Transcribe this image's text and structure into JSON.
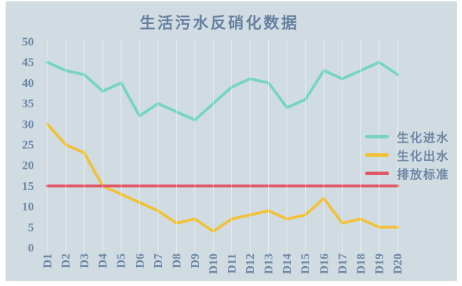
{
  "window": {
    "page_background": "#ffffff",
    "panel_background": "#d0dce2"
  },
  "chart_data": {
    "type": "line",
    "title": "生活污水反硝化数据",
    "categories": [
      "D1",
      "D2",
      "D3",
      "D4",
      "D5",
      "D6",
      "D7",
      "D8",
      "D9",
      "D10",
      "D11",
      "D12",
      "D13",
      "D14",
      "D15",
      "D16",
      "D17",
      "D18",
      "D19",
      "D20"
    ],
    "series": [
      {
        "name": "生化进水",
        "color": "#76d5c1",
        "values": [
          45,
          43,
          42,
          38,
          40,
          32,
          35,
          33,
          31,
          35,
          39,
          41,
          40,
          34,
          36,
          43,
          41,
          43,
          45,
          42
        ]
      },
      {
        "name": "生化出水",
        "color": "#f1c13a",
        "values": [
          30,
          25,
          23,
          15,
          13,
          11,
          9,
          6,
          7,
          4,
          7,
          8,
          9,
          7,
          8,
          12,
          6,
          7,
          5,
          5
        ]
      },
      {
        "name": "排放标准",
        "color": "#e25765",
        "values": [
          15,
          15,
          15,
          15,
          15,
          15,
          15,
          15,
          15,
          15,
          15,
          15,
          15,
          15,
          15,
          15,
          15,
          15,
          15,
          15
        ]
      }
    ],
    "xlabel": "",
    "ylabel": "",
    "ylim": [
      0,
      50
    ],
    "ytick_step": 5,
    "yticks": [
      "0",
      "5",
      "10",
      "15",
      "20",
      "25",
      "30",
      "35",
      "40",
      "45",
      "50"
    ],
    "grid": "vertical-only",
    "gridline_color": "rgba(255,255,255,0.5)",
    "text_color": "#6e87a6",
    "legend_position": "center-right",
    "x_tick_rotation": "90deg-bottom-to-top"
  }
}
